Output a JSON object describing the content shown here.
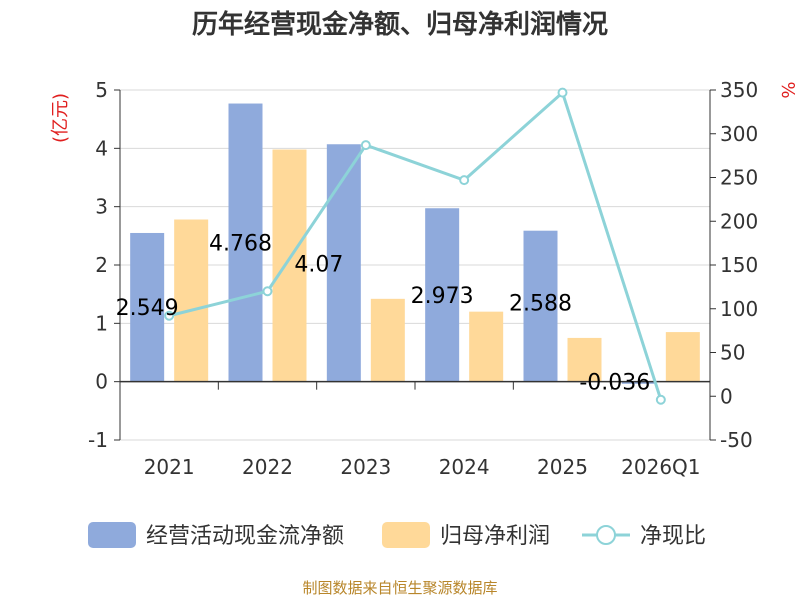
{
  "chart_data": {
    "type": "bar",
    "title": "历年经营现金净额、归母净利润情况",
    "categories": [
      "2021",
      "2022",
      "2023",
      "2024",
      "2025",
      "2026Q1"
    ],
    "y_left": {
      "unit": "(亿元)",
      "range": [
        -1,
        5
      ],
      "ticks": [
        "-1",
        "0",
        "1",
        "2",
        "3",
        "4",
        "5"
      ]
    },
    "y_right": {
      "unit": "%",
      "range": [
        -50,
        350
      ],
      "ticks": [
        "-50",
        "0",
        "50",
        "100",
        "150",
        "200",
        "250",
        "300",
        "350"
      ]
    },
    "series": [
      {
        "name": "经营活动现金流净额",
        "type": "bar",
        "axis": "left",
        "color": "#8faadc",
        "values": [
          2.549,
          4.768,
          4.07,
          2.973,
          2.588,
          -0.036
        ],
        "labels": [
          "2.549",
          "4.768",
          "4.07",
          "2.973",
          "2.588",
          "-0.036"
        ]
      },
      {
        "name": "归母净利润",
        "type": "bar",
        "axis": "left",
        "color": "#ffd999",
        "values": [
          2.78,
          3.98,
          1.42,
          1.2,
          0.75,
          0.85
        ]
      },
      {
        "name": "净现比",
        "type": "line",
        "axis": "right",
        "color": "#8dd3d8",
        "values": [
          92,
          120,
          287,
          247,
          347,
          -4
        ]
      }
    ],
    "grid": true,
    "legend_position": "bottom"
  },
  "footer": {
    "source": "制图数据来自恒生聚源数据库"
  }
}
